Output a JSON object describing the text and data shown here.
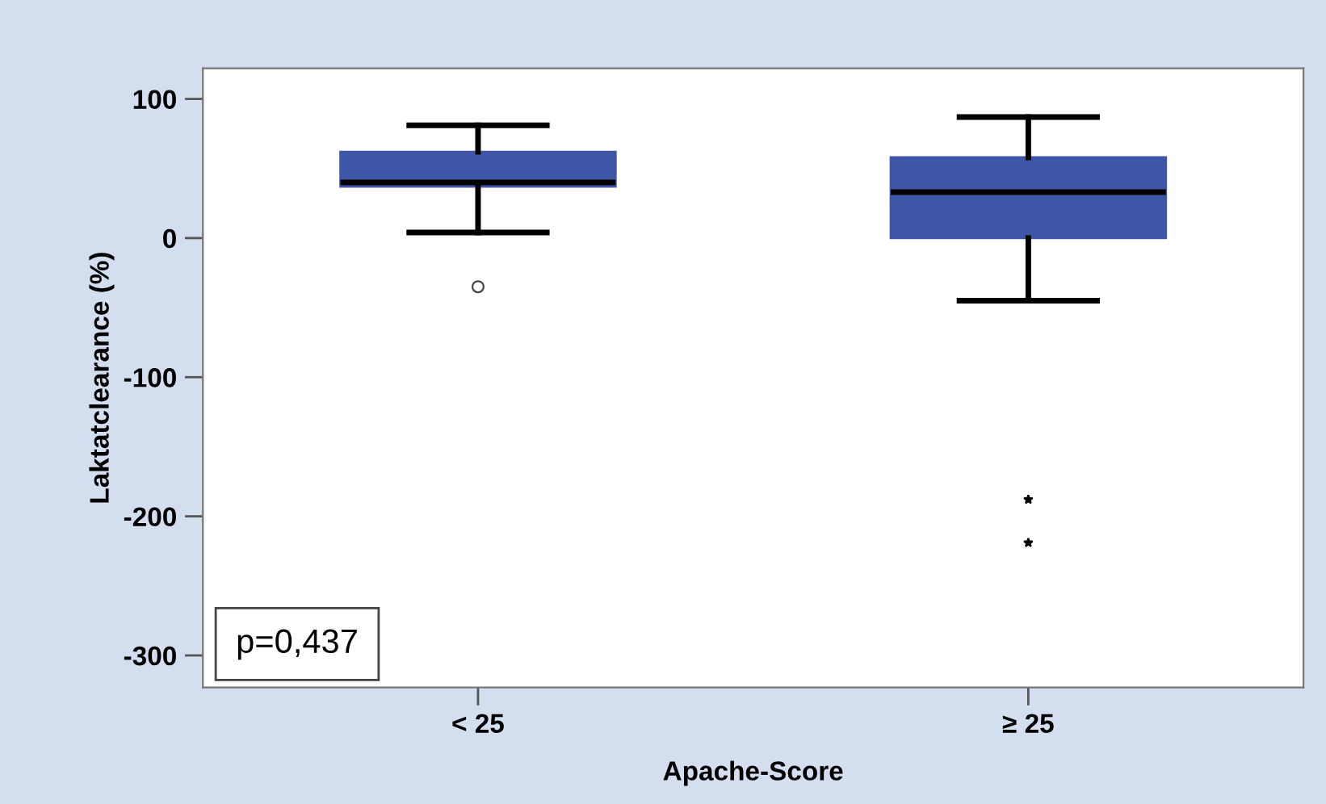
{
  "chart_data": {
    "type": "box",
    "xlabel": "Apache-Score",
    "ylabel": "Laktatclearance (%)",
    "categories": [
      "< 25",
      "≥ 25"
    ],
    "series": [
      {
        "color": "#3f56a8",
        "marker": "circle",
        "boxes": [
          {
            "low": 4,
            "q1": 37,
            "median": 40,
            "q3": 62,
            "high": 81,
            "outliers": [
              -35
            ]
          },
          null
        ]
      },
      {
        "color": "#3f56a8",
        "marker": "star",
        "boxes": [
          null,
          {
            "low": -45,
            "q1": 0,
            "median": 33,
            "q3": 58,
            "high": 87,
            "outliers": [
              -188,
              -219
            ]
          }
        ]
      }
    ],
    "ylim": [
      -323,
      122
    ],
    "yticks": [
      -300,
      -200,
      -100,
      0,
      100
    ],
    "grid": false,
    "annotations": [
      "p=0,437"
    ]
  }
}
